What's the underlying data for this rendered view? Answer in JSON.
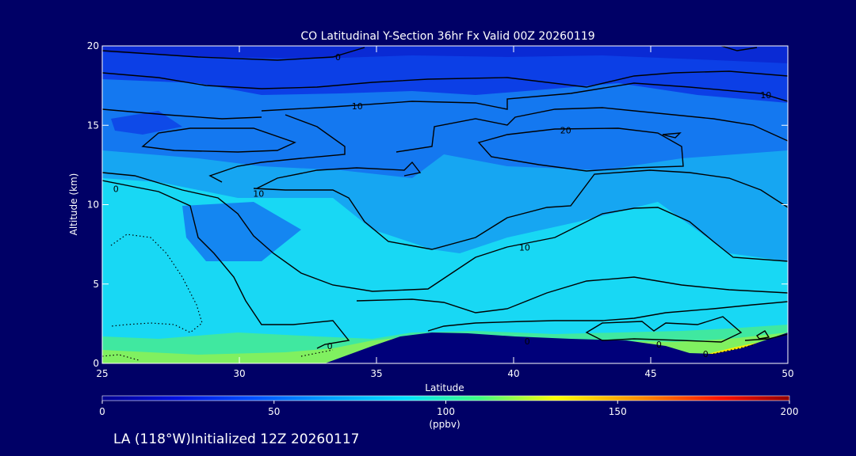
{
  "chart_data": {
    "type": "contour",
    "title": "CO Latitudinal Y-Section 36hr  Fx Valid 00Z 20260119",
    "xlabel": "Latitude",
    "ylabel": "Altitude (km)",
    "xlim": [
      25,
      50
    ],
    "ylim": [
      0,
      20
    ],
    "x_ticks": [
      25,
      30,
      35,
      40,
      45,
      50
    ],
    "y_ticks": [
      0,
      5,
      10,
      15,
      20
    ],
    "contour_labels": [
      {
        "text": "0",
        "lat": 33.6,
        "alt": 19.3
      },
      {
        "text": "10",
        "lat": 34.3,
        "alt": 16.2
      },
      {
        "text": "20",
        "lat": 41.9,
        "alt": 14.7
      },
      {
        "text": "10",
        "lat": 49.2,
        "alt": 16.9
      },
      {
        "text": "0",
        "lat": 25.5,
        "alt": 11.0
      },
      {
        "text": "10",
        "lat": 30.7,
        "alt": 10.7
      },
      {
        "text": "10",
        "lat": 40.4,
        "alt": 7.3
      },
      {
        "text": "0",
        "lat": 33.3,
        "alt": 1.1
      },
      {
        "text": "0",
        "lat": 40.5,
        "alt": 1.4
      },
      {
        "text": "0",
        "lat": 45.3,
        "alt": 1.2
      },
      {
        "text": "0",
        "lat": 47.0,
        "alt": 0.6
      }
    ],
    "colorbar": {
      "ticks": [
        0,
        50,
        100,
        150,
        200
      ],
      "units": "(ppbv)",
      "colors": [
        "#000090",
        "#0000e0",
        "#0050ff",
        "#00b0ff",
        "#00e0ff",
        "#40ff80",
        "#ffff00",
        "#ff8000",
        "#ff0000",
        "#a00000"
      ]
    },
    "field_colors": {
      "top": "#0a2fe0",
      "upper": "#1060f2",
      "mid": "#1aa0f2",
      "lower": "#10d8f2",
      "surface_green": "#60f070",
      "surface_yellow": "#ffee00",
      "terrain": "#00007a"
    }
  },
  "footer": {
    "caption": "LA (118°W)Initialized 12Z 20260117"
  }
}
